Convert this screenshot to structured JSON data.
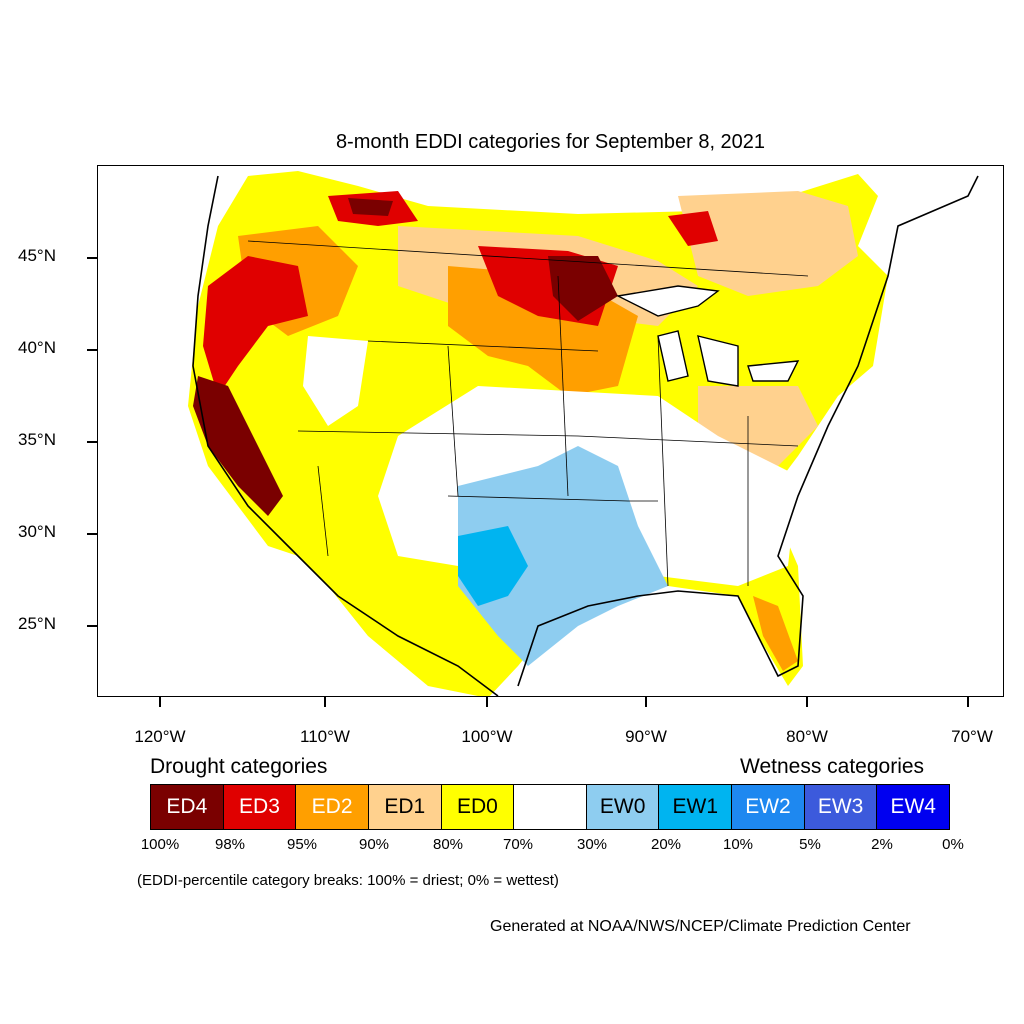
{
  "title": "8-month EDDI categories for September 8, 2021",
  "map": {
    "type": "choropleth",
    "region": "Contiguous United States",
    "lat_labels": [
      "45°N",
      "40°N",
      "35°N",
      "30°N",
      "25°N"
    ],
    "lon_labels": [
      "120°W",
      "110°W",
      "100°W",
      "90°W",
      "80°W",
      "70°W"
    ],
    "lat_values": [
      45,
      40,
      35,
      30,
      25
    ],
    "lon_values": [
      -120,
      -110,
      -100,
      -90,
      -80,
      -70
    ]
  },
  "legend": {
    "drought_heading": "Drought categories",
    "wetness_heading": "Wetness categories",
    "categories": [
      {
        "label": "ED4",
        "color": "#7a0000",
        "text_color": "#ffffff"
      },
      {
        "label": "ED3",
        "color": "#e00000",
        "text_color": "#ffffff"
      },
      {
        "label": "ED2",
        "color": "#ff9f00",
        "text_color": "#ffffff"
      },
      {
        "label": "ED1",
        "color": "#ffd18e",
        "text_color": "#000000"
      },
      {
        "label": "ED0",
        "color": "#ffff00",
        "text_color": "#000000"
      },
      {
        "label": "",
        "color": "#ffffff",
        "text_color": "#000000"
      },
      {
        "label": "EW0",
        "color": "#8ecdf0",
        "text_color": "#000000"
      },
      {
        "label": "EW1",
        "color": "#00b4f0",
        "text_color": "#000000"
      },
      {
        "label": "EW2",
        "color": "#1e88f0",
        "text_color": "#ffffff"
      },
      {
        "label": "EW3",
        "color": "#3c5adc",
        "text_color": "#ffffff"
      },
      {
        "label": "EW4",
        "color": "#0000f0",
        "text_color": "#ffffff"
      }
    ],
    "breaks": [
      "100%",
      "98%",
      "95%",
      "90%",
      "80%",
      "70%",
      "30%",
      "20%",
      "10%",
      "5%",
      "2%",
      "0%"
    ]
  },
  "note": "(EDDI-percentile category breaks: 100% = driest; 0% = wettest)",
  "credit": "Generated at NOAA/NWS/NCEP/Climate Prediction Center"
}
